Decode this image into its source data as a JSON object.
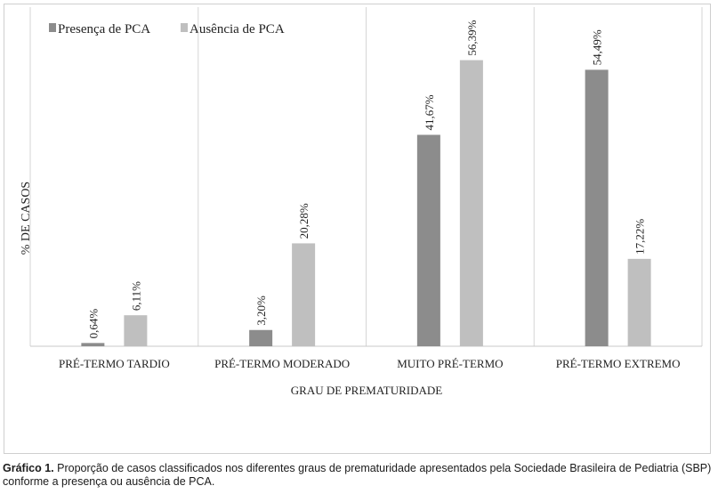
{
  "chart_data": {
    "type": "bar",
    "categories": [
      "PRÉ-TERMO TARDIO",
      "PRÉ-TERMO MODERADO",
      "MUITO PRÉ-TERMO",
      "PRÉ-TERMO EXTREMO"
    ],
    "series": [
      {
        "name": "Presença de PCA",
        "values": [
          0.64,
          3.2,
          41.67,
          54.49
        ],
        "labels": [
          "0,64%",
          "3,20%",
          "41,67%",
          "54,49%"
        ],
        "color": "#8c8c8c"
      },
      {
        "name": "Ausência de PCA",
        "values": [
          6.11,
          20.28,
          56.39,
          17.22
        ],
        "labels": [
          "6,11%",
          "20,28%",
          "56,39%",
          "17,22%"
        ],
        "color": "#bfbfbf"
      }
    ],
    "xlabel": "GRAU DE PREMATURIDADE",
    "ylabel": "% DE CASOS",
    "ylim": [
      0,
      60
    ],
    "legend_position": "top-left",
    "grid": false
  },
  "caption": {
    "label": "Gráfico 1.",
    "text": "Proporção de casos classificados nos diferentes graus de prematuridade apresentados pela Sociedade Brasileira de Pediatria (SBP) conforme a presença ou ausência de PCA."
  }
}
